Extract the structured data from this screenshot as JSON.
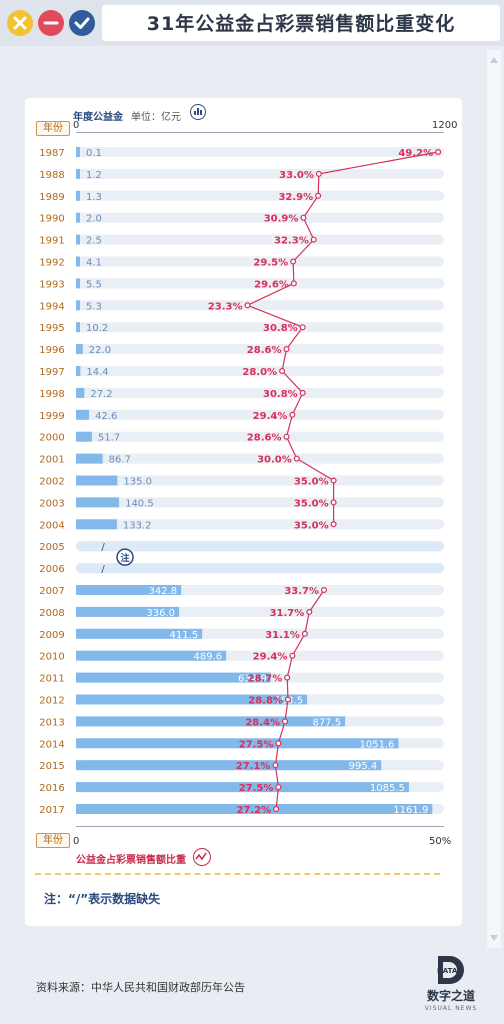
{
  "header": {
    "title": "31年公益金占彩票销售额比重变化",
    "close_icon": "close-icon",
    "minimize_icon": "minimize-icon",
    "check_icon": "check-icon"
  },
  "legend": {
    "fund_title": "年度公益金",
    "unit": "单位：亿元",
    "ratio_title": "公益金占彩票销售额比重",
    "year_tag": "年份"
  },
  "axis": {
    "fund_min": "0",
    "fund_max": "1200",
    "ratio_min": "0",
    "ratio_max": "50%"
  },
  "note": "注：“/”表示数据缺失",
  "note_marker": "注",
  "source": "资料来源：中华人民共和国财政部历年公告",
  "logo": {
    "name": "数字之道",
    "mark": "DATA",
    "sub": "VISUAL NEWS"
  },
  "colors": {
    "bar": "#83b8ea",
    "bar_track": "#eaeef5",
    "line": "#d8305a",
    "year_text": "#b06a1c"
  },
  "chart_data": {
    "type": "bar",
    "categories": [
      "1987",
      "1988",
      "1989",
      "1990",
      "1991",
      "1992",
      "1993",
      "1994",
      "1995",
      "1996",
      "1997",
      "1998",
      "1999",
      "2000",
      "2001",
      "2002",
      "2003",
      "2004",
      "2005",
      "2006",
      "2007",
      "2008",
      "2009",
      "2010",
      "2011",
      "2012",
      "2013",
      "2014",
      "2015",
      "2016",
      "2017"
    ],
    "series": [
      {
        "name": "年度公益金",
        "type": "bar",
        "values": [
          0.1,
          1.2,
          1.3,
          2.0,
          2.5,
          4.1,
          5.5,
          5.3,
          10.2,
          22.0,
          14.4,
          27.2,
          42.6,
          51.7,
          86.7,
          135.0,
          140.5,
          133.2,
          null,
          null,
          342.8,
          336.0,
          411.5,
          489.6,
          634.9,
          753.5,
          877.5,
          1051.6,
          995.4,
          1085.5,
          1161.9
        ],
        "labels": [
          "0.1",
          "1.2",
          "1.3",
          "2.0",
          "2.5",
          "4.1",
          "5.5",
          "5.3",
          "10.2",
          "22.0",
          "14.4",
          "27.2",
          "42.6",
          "51.7",
          "86.7",
          "135.0",
          "140.5",
          "133.2",
          "/",
          "/",
          "342.8",
          "336.0",
          "411.5",
          "489.6",
          "634.9",
          "753.5",
          "877.5",
          "1051.6",
          "995.4",
          "1085.5",
          "1161.9"
        ],
        "xlim": [
          0,
          1200
        ]
      },
      {
        "name": "公益金占彩票销售额比重",
        "type": "line",
        "values": [
          49.2,
          33.0,
          32.9,
          30.9,
          32.3,
          29.5,
          29.6,
          23.3,
          30.8,
          28.6,
          28.0,
          30.8,
          29.4,
          28.6,
          30.0,
          35.0,
          35.0,
          35.0,
          null,
          null,
          33.7,
          31.7,
          31.1,
          29.4,
          28.7,
          28.8,
          28.4,
          27.5,
          27.1,
          27.5,
          27.2
        ],
        "labels": [
          "49.2%",
          "33.0%",
          "32.9%",
          "30.9%",
          "32.3%",
          "29.5%",
          "29.6%",
          "23.3%",
          "30.8%",
          "28.6%",
          "28.0%",
          "30.8%",
          "29.4%",
          "28.6%",
          "30.0%",
          "35.0%",
          "35.0%",
          "35.0%",
          "",
          "",
          "33.7%",
          "31.7%",
          "31.1%",
          "29.4%",
          "28.7%",
          "28.8%",
          "28.4%",
          "27.5%",
          "27.1%",
          "27.5%",
          "27.2%"
        ],
        "xlim": [
          0,
          50
        ]
      }
    ]
  }
}
